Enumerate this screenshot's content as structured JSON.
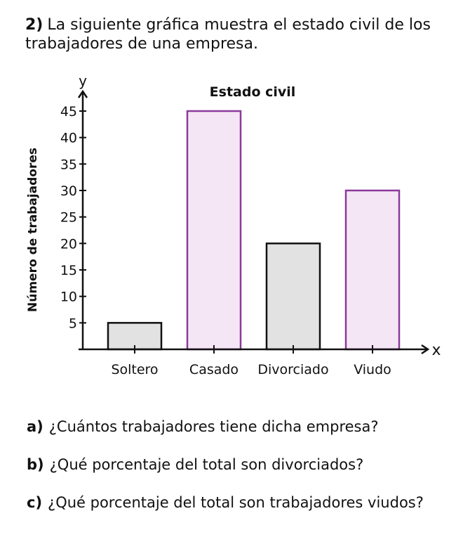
{
  "problem": {
    "number": "2)",
    "statement": "La siguiente gráfica muestra el estado civil de los trabajadores de una empresa."
  },
  "chart_data": {
    "type": "bar",
    "title": "Estado civil",
    "xlabel": "",
    "ylabel": "Número de trabajadores",
    "x_axis_letter": "x",
    "y_axis_letter": "y",
    "categories": [
      "Soltero",
      "Casado",
      "Divorciado",
      "Viudo"
    ],
    "values": [
      5,
      45,
      20,
      30
    ],
    "bar_fills": [
      "#e2e2e2",
      "#f5e6f5",
      "#e2e2e2",
      "#f5e6f5"
    ],
    "bar_strokes": [
      "#111111",
      "#8a3a9a",
      "#111111",
      "#8a3a9a"
    ],
    "ylim": [
      0,
      45
    ],
    "yticks": [
      5,
      10,
      15,
      20,
      25,
      30,
      35,
      40,
      45
    ],
    "grid": false
  },
  "questions": [
    {
      "letter": "a)",
      "text": "¿Cuántos trabajadores tiene dicha empresa?"
    },
    {
      "letter": "b)",
      "text": "¿Qué porcentaje del total son divorciados?"
    },
    {
      "letter": "c)",
      "text": "¿Qué porcentaje del total son trabajadores viudos?"
    }
  ]
}
